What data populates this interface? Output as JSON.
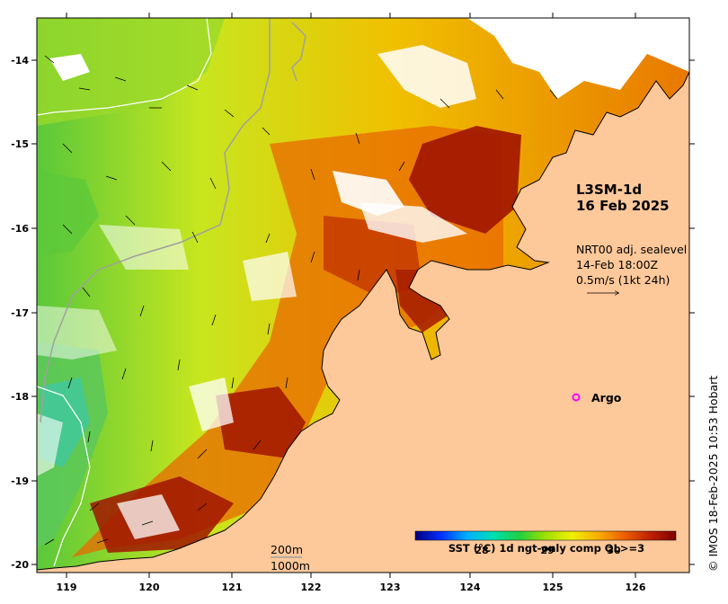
{
  "product": {
    "line1": "L3SM-1d",
    "line2": "16 Feb 2025"
  },
  "currents": {
    "line1": "NRT00 adj. sealevel",
    "line2": "14-Feb 18:00Z",
    "line3": "0.5m/s (1kt 24h)"
  },
  "argo": {
    "label": "Argo",
    "marker_color": "#ff00ff"
  },
  "isobaths": {
    "line1": "200m",
    "line2": "1000m"
  },
  "colorbar": {
    "title": "SST (°C) 1d ngt-only comp QL>=3",
    "ticks": [
      "28",
      "29",
      "30"
    ],
    "colors": [
      "#00007f",
      "#0030ff",
      "#00b0ff",
      "#00e0b0",
      "#20d040",
      "#a0e000",
      "#f0f000",
      "#f8b000",
      "#f06000",
      "#c02000",
      "#800000"
    ]
  },
  "axes": {
    "lat_labels": [
      "-14",
      "-15",
      "-16",
      "-17",
      "-18",
      "-19",
      "-20"
    ],
    "lon_labels": [
      "119",
      "120",
      "121",
      "122",
      "123",
      "124",
      "125",
      "126"
    ]
  },
  "credit": "© IMOS 18-Feb-2025 10:53 Hobart",
  "land_color": "#fdc89a"
}
